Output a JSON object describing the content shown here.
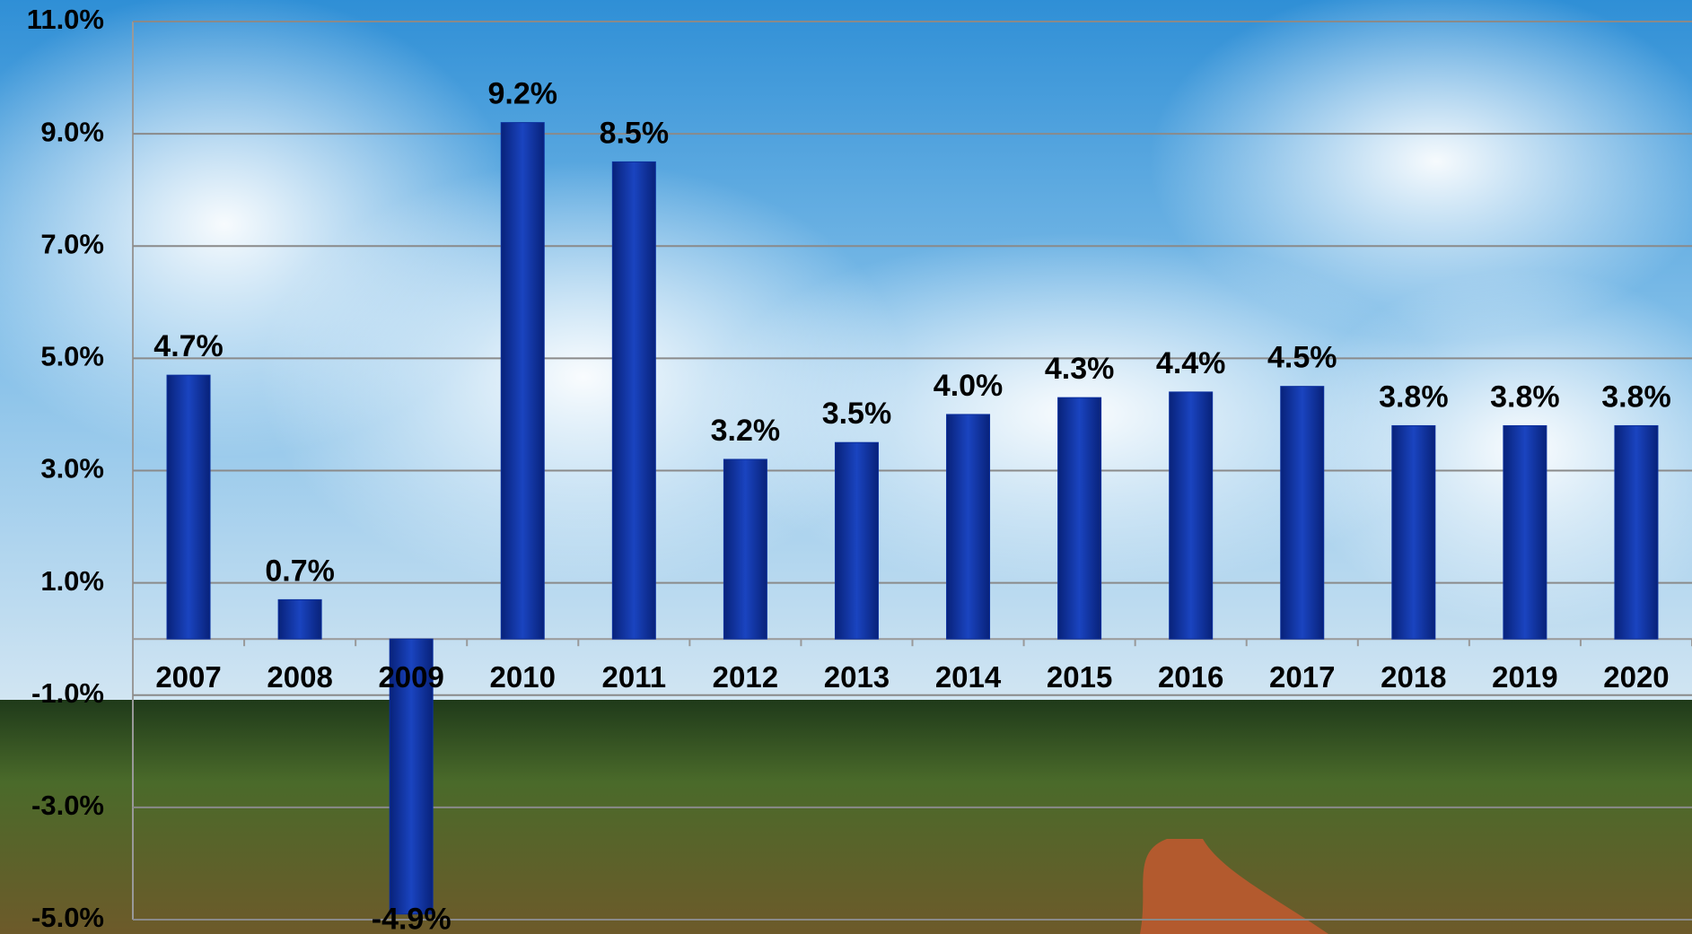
{
  "chart_data": {
    "type": "bar",
    "categories": [
      "2007",
      "2008",
      "2009",
      "2010",
      "2011",
      "2012",
      "2013",
      "2014",
      "2015",
      "2016",
      "2017",
      "2018",
      "2019",
      "2020"
    ],
    "values": [
      4.7,
      0.7,
      -4.9,
      9.2,
      8.5,
      3.2,
      3.5,
      4.0,
      4.3,
      4.4,
      4.5,
      3.8,
      3.8,
      3.8
    ],
    "value_labels": [
      "4.7%",
      "0.7%",
      "-4.9%",
      "9.2%",
      "8.5%",
      "3.2%",
      "3.5%",
      "4.0%",
      "4.3%",
      "4.4%",
      "4.5%",
      "3.8%",
      "3.8%",
      "3.8%"
    ],
    "color": "#0b2f9e",
    "ylim": [
      -5,
      11
    ],
    "yticks": [
      {
        "value": -5,
        "label": "-5.0%"
      },
      {
        "value": -3,
        "label": "-3.0%"
      },
      {
        "value": -1,
        "label": "-1.0%"
      },
      {
        "value": 1,
        "label": "1.0%"
      },
      {
        "value": 3,
        "label": "3.0%"
      },
      {
        "value": 5,
        "label": "5.0%"
      },
      {
        "value": 7,
        "label": "7.0%"
      },
      {
        "value": 9,
        "label": "9.0%"
      },
      {
        "value": 11,
        "label": "11.0%"
      }
    ],
    "grid": true
  }
}
